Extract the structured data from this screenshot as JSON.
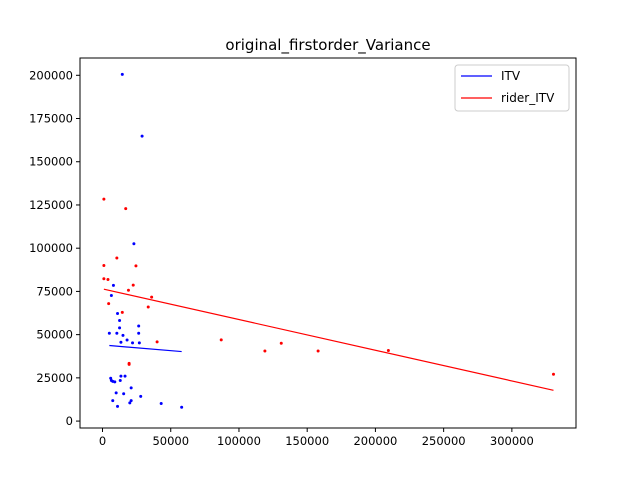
{
  "chart_data": {
    "type": "scatter",
    "title": "original_firstorder_Variance",
    "xlabel": "",
    "ylabel": "",
    "xlim": [
      -16500,
      347000
    ],
    "ylim": [
      -4000,
      210000
    ],
    "x_ticks": [
      0,
      50000,
      100000,
      150000,
      200000,
      250000,
      300000
    ],
    "y_ticks": [
      0,
      25000,
      50000,
      75000,
      100000,
      125000,
      150000,
      175000,
      200000
    ],
    "grid": false,
    "legend_position": "top-right",
    "series": [
      {
        "name": "ITV",
        "color": "#0000ff",
        "points": [
          [
            14500,
            200500
          ],
          [
            29000,
            164800
          ],
          [
            23000,
            102600
          ],
          [
            8000,
            78500
          ],
          [
            6500,
            72600
          ],
          [
            11000,
            62200
          ],
          [
            12500,
            58200
          ],
          [
            12500,
            53900
          ],
          [
            26500,
            55000
          ],
          [
            26500,
            50800
          ],
          [
            5000,
            50800
          ],
          [
            10500,
            50800
          ],
          [
            15000,
            49600
          ],
          [
            18000,
            46900
          ],
          [
            13500,
            45600
          ],
          [
            22000,
            45200
          ],
          [
            27000,
            45200
          ],
          [
            6000,
            24800
          ],
          [
            6500,
            23500
          ],
          [
            7500,
            23000
          ],
          [
            13000,
            23500
          ],
          [
            13500,
            26000
          ],
          [
            16500,
            26000
          ],
          [
            9000,
            22700
          ],
          [
            10000,
            16300
          ],
          [
            15500,
            15800
          ],
          [
            21000,
            19200
          ],
          [
            28000,
            14300
          ],
          [
            7500,
            11800
          ],
          [
            20000,
            10500
          ],
          [
            21000,
            11800
          ],
          [
            11000,
            8500
          ],
          [
            43000,
            10200
          ],
          [
            58000,
            8000
          ]
        ],
        "fit_line": {
          "x": [
            5000,
            58000
          ],
          "y": [
            43700,
            40200
          ]
        }
      },
      {
        "name": "rider_ITV",
        "color": "#ff0000",
        "points": [
          [
            1000,
            128400
          ],
          [
            17000,
            122900
          ],
          [
            10500,
            94300
          ],
          [
            24500,
            89800
          ],
          [
            1000,
            90000
          ],
          [
            1000,
            82300
          ],
          [
            4000,
            81900
          ],
          [
            22500,
            78600
          ],
          [
            19000,
            75700
          ],
          [
            36000,
            71700
          ],
          [
            4500,
            67900
          ],
          [
            33500,
            66000
          ],
          [
            14500,
            62900
          ],
          [
            40000,
            45800
          ],
          [
            19500,
            33400
          ],
          [
            19500,
            32800
          ],
          [
            87000,
            47000
          ],
          [
            119000,
            40500
          ],
          [
            131000,
            45000
          ],
          [
            158000,
            40500
          ],
          [
            209500,
            40800
          ],
          [
            330500,
            27100
          ]
        ],
        "fit_line": {
          "x": [
            1000,
            330500
          ],
          "y": [
            76300,
            17800
          ]
        }
      }
    ]
  }
}
